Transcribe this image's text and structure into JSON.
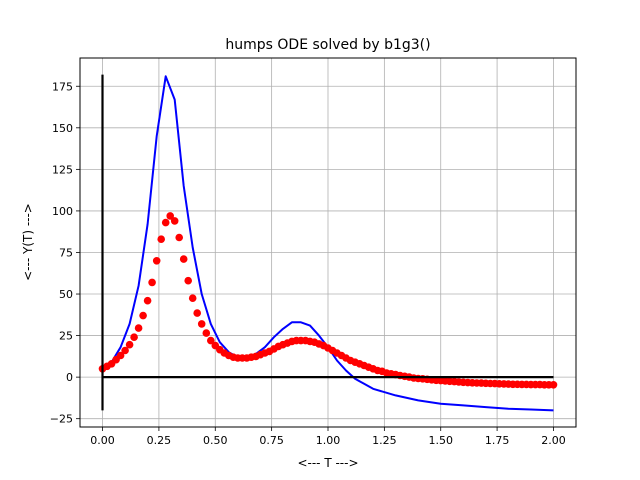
{
  "chart_data": {
    "type": "line",
    "title": "humps ODE solved by b1g3()",
    "xlabel": "<--- T --->",
    "ylabel": "<--- Y(T) --->",
    "xlim": [
      -0.1,
      2.1
    ],
    "ylim": [
      -30,
      192
    ],
    "grid": true,
    "legend": "none",
    "x_ticks": [
      {
        "value": 0.0,
        "label": "0.00"
      },
      {
        "value": 0.25,
        "label": "0.25"
      },
      {
        "value": 0.5,
        "label": "0.50"
      },
      {
        "value": 0.75,
        "label": "0.75"
      },
      {
        "value": 1.0,
        "label": "1.00"
      },
      {
        "value": 1.25,
        "label": "1.25"
      },
      {
        "value": 1.5,
        "label": "1.50"
      },
      {
        "value": 1.75,
        "label": "1.75"
      },
      {
        "value": 2.0,
        "label": "2.00"
      }
    ],
    "y_ticks": [
      {
        "value": -25,
        "label": "−25"
      },
      {
        "value": 0,
        "label": "0"
      },
      {
        "value": 25,
        "label": "25"
      },
      {
        "value": 50,
        "label": "50"
      },
      {
        "value": 75,
        "label": "75"
      },
      {
        "value": 100,
        "label": "100"
      },
      {
        "value": 125,
        "label": "125"
      },
      {
        "value": 150,
        "label": "150"
      },
      {
        "value": 175,
        "label": "175"
      }
    ],
    "series": [
      {
        "style": "line",
        "color": "#0000ff",
        "x": [
          0.0,
          0.04,
          0.08,
          0.12,
          0.16,
          0.2,
          0.24,
          0.28,
          0.32,
          0.36,
          0.4,
          0.44,
          0.48,
          0.52,
          0.56,
          0.6,
          0.64,
          0.68,
          0.72,
          0.76,
          0.8,
          0.84,
          0.88,
          0.92,
          0.96,
          1.0,
          1.04,
          1.08,
          1.12,
          1.16,
          1.2,
          1.3,
          1.4,
          1.5,
          1.6,
          1.7,
          1.8,
          1.9,
          2.0
        ],
        "y": [
          5,
          9,
          18,
          32,
          55,
          92,
          145,
          181,
          167,
          115,
          78,
          50,
          32,
          21,
          15,
          12,
          12,
          14,
          18,
          24,
          29,
          33,
          33,
          31,
          25,
          18,
          10,
          4,
          -1,
          -4,
          -7,
          -11,
          -14,
          -16,
          -17,
          -18,
          -19,
          -19.5,
          -20
        ]
      },
      {
        "style": "markers",
        "color": "#ff0000",
        "x": [
          0.0,
          0.02,
          0.04,
          0.06,
          0.08,
          0.1,
          0.12,
          0.14,
          0.16,
          0.18,
          0.2,
          0.22,
          0.24,
          0.26,
          0.28,
          0.3,
          0.32,
          0.34,
          0.36,
          0.38,
          0.4,
          0.42,
          0.44,
          0.46,
          0.48,
          0.5,
          0.52,
          0.54,
          0.56,
          0.58,
          0.6,
          0.62,
          0.64,
          0.66,
          0.68,
          0.7,
          0.72,
          0.74,
          0.76,
          0.78,
          0.8,
          0.82,
          0.84,
          0.86,
          0.88,
          0.9,
          0.92,
          0.94,
          0.96,
          0.98,
          1.0,
          1.02,
          1.04,
          1.06,
          1.08,
          1.1,
          1.12,
          1.14,
          1.16,
          1.18,
          1.2,
          1.22,
          1.24,
          1.26,
          1.28,
          1.3,
          1.32,
          1.34,
          1.36,
          1.38,
          1.4,
          1.42,
          1.44,
          1.46,
          1.48,
          1.5,
          1.52,
          1.54,
          1.56,
          1.58,
          1.6,
          1.62,
          1.64,
          1.66,
          1.68,
          1.7,
          1.72,
          1.74,
          1.76,
          1.78,
          1.8,
          1.82,
          1.84,
          1.86,
          1.88,
          1.9,
          1.92,
          1.94,
          1.96,
          1.98,
          2.0
        ],
        "y": [
          5,
          6.5,
          8,
          10.5,
          13,
          16,
          19.5,
          24,
          29.5,
          37,
          46,
          57,
          70,
          83,
          93,
          97,
          94,
          84,
          71,
          58,
          47.5,
          38.5,
          32,
          26.5,
          22,
          19,
          16.5,
          14.5,
          13,
          12,
          11.5,
          11.5,
          11.5,
          12,
          12.5,
          13.5,
          14.5,
          15.5,
          17,
          18.5,
          19.5,
          20.5,
          21.5,
          22,
          22,
          22,
          21.5,
          21,
          20,
          19,
          17.5,
          16,
          14.5,
          13,
          11.5,
          10,
          9,
          8,
          7,
          6,
          5,
          4,
          3.5,
          2.5,
          2,
          1.5,
          1,
          0.5,
          0,
          -0.5,
          -0.8,
          -1,
          -1.3,
          -1.6,
          -1.9,
          -2.1,
          -2.3,
          -2.5,
          -2.7,
          -2.9,
          -3.1,
          -3.3,
          -3.4,
          -3.5,
          -3.6,
          -3.7,
          -3.8,
          -3.9,
          -4,
          -4.1,
          -4.2,
          -4.3,
          -4.3,
          -4.4,
          -4.4,
          -4.5,
          -4.5,
          -4.5,
          -4.6,
          -4.6,
          -4.6
        ]
      },
      {
        "style": "line",
        "color": "#000000",
        "x": [
          0,
          2
        ],
        "y": [
          0,
          0
        ]
      },
      {
        "style": "line",
        "color": "#000000",
        "x": [
          0,
          0
        ],
        "y": [
          -20,
          182
        ]
      }
    ]
  }
}
